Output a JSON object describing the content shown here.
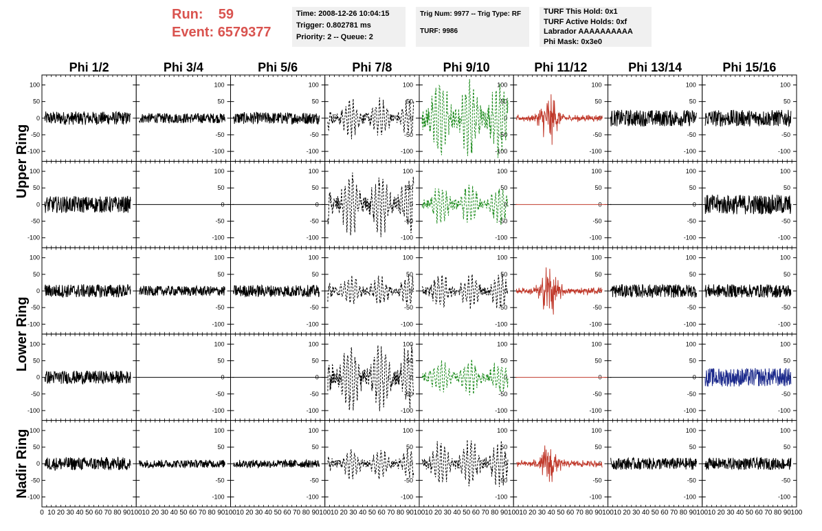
{
  "header": {
    "run_label": "Run:",
    "run_value": "59",
    "event_label": "Event:",
    "event_value": "6579377",
    "info_box_1": [
      "Time: 2008-12-26 10:04:15",
      "Trigger: 0.802781 ms",
      "Priority: 2 -- Queue: 2"
    ],
    "info_box_2": [
      "Trig Num: 9977 -- Trig Type: RF",
      "TURF: 9986"
    ],
    "info_box_3": [
      "TURF This Hold: 0x1",
      "TURF Active Holds: 0xf",
      "Labrador AAAAAAAAAA",
      "Phi Mask: 0x3e0"
    ],
    "title_color": "#d9534f"
  },
  "chart_data": {
    "type": "line",
    "columns": [
      "Phi 1/2",
      "Phi 3/4",
      "Phi 5/6",
      "Phi 7/8",
      "Phi 9/10",
      "Phi 11/12",
      "Phi 13/14",
      "Phi 15/16"
    ],
    "ring_labels": [
      {
        "label": "Upper Ring",
        "rows": [
          0,
          1
        ]
      },
      {
        "label": "Lower Ring",
        "rows": [
          2,
          3
        ]
      },
      {
        "label": "Nadir Ring",
        "rows": [
          4
        ]
      }
    ],
    "ylim": [
      -130,
      130
    ],
    "yticks": [
      -100,
      -50,
      0,
      50,
      100
    ],
    "xlim": [
      0,
      100
    ],
    "xticks": [
      0,
      10,
      20,
      30,
      40,
      50,
      60,
      70,
      80,
      90,
      100
    ],
    "colors": {
      "black": "#000000",
      "green": "#1a8a1a",
      "red": "#c0392b",
      "blue": "#1c2a8c"
    },
    "panels": [
      [
        "black:20",
        "black:15",
        "black:18",
        "black:dashed:50",
        "green:dashed:100",
        "red:burst:80",
        "black:25",
        "black:25"
      ],
      [
        "black:25",
        "black:flat",
        "black:flat",
        "black:dashed:80",
        "green:dashed:50",
        "red:flat",
        "black:flat",
        "black:30"
      ],
      [
        "black:20",
        "black:15",
        "black:18",
        "black:dashed:40",
        "black:dashed:45",
        "red:burst:90",
        "black:20",
        "black:20"
      ],
      [
        "black:20",
        "black:flat",
        "black:flat",
        "black:dashed:90",
        "green:dashed:45",
        "red:flat",
        "black:flat",
        "blue:28"
      ],
      [
        "black:20",
        "black:12",
        "black:12",
        "black:dashed:40",
        "black:dashed:60",
        "red:burst:65",
        "black:18",
        "black:18"
      ]
    ]
  }
}
